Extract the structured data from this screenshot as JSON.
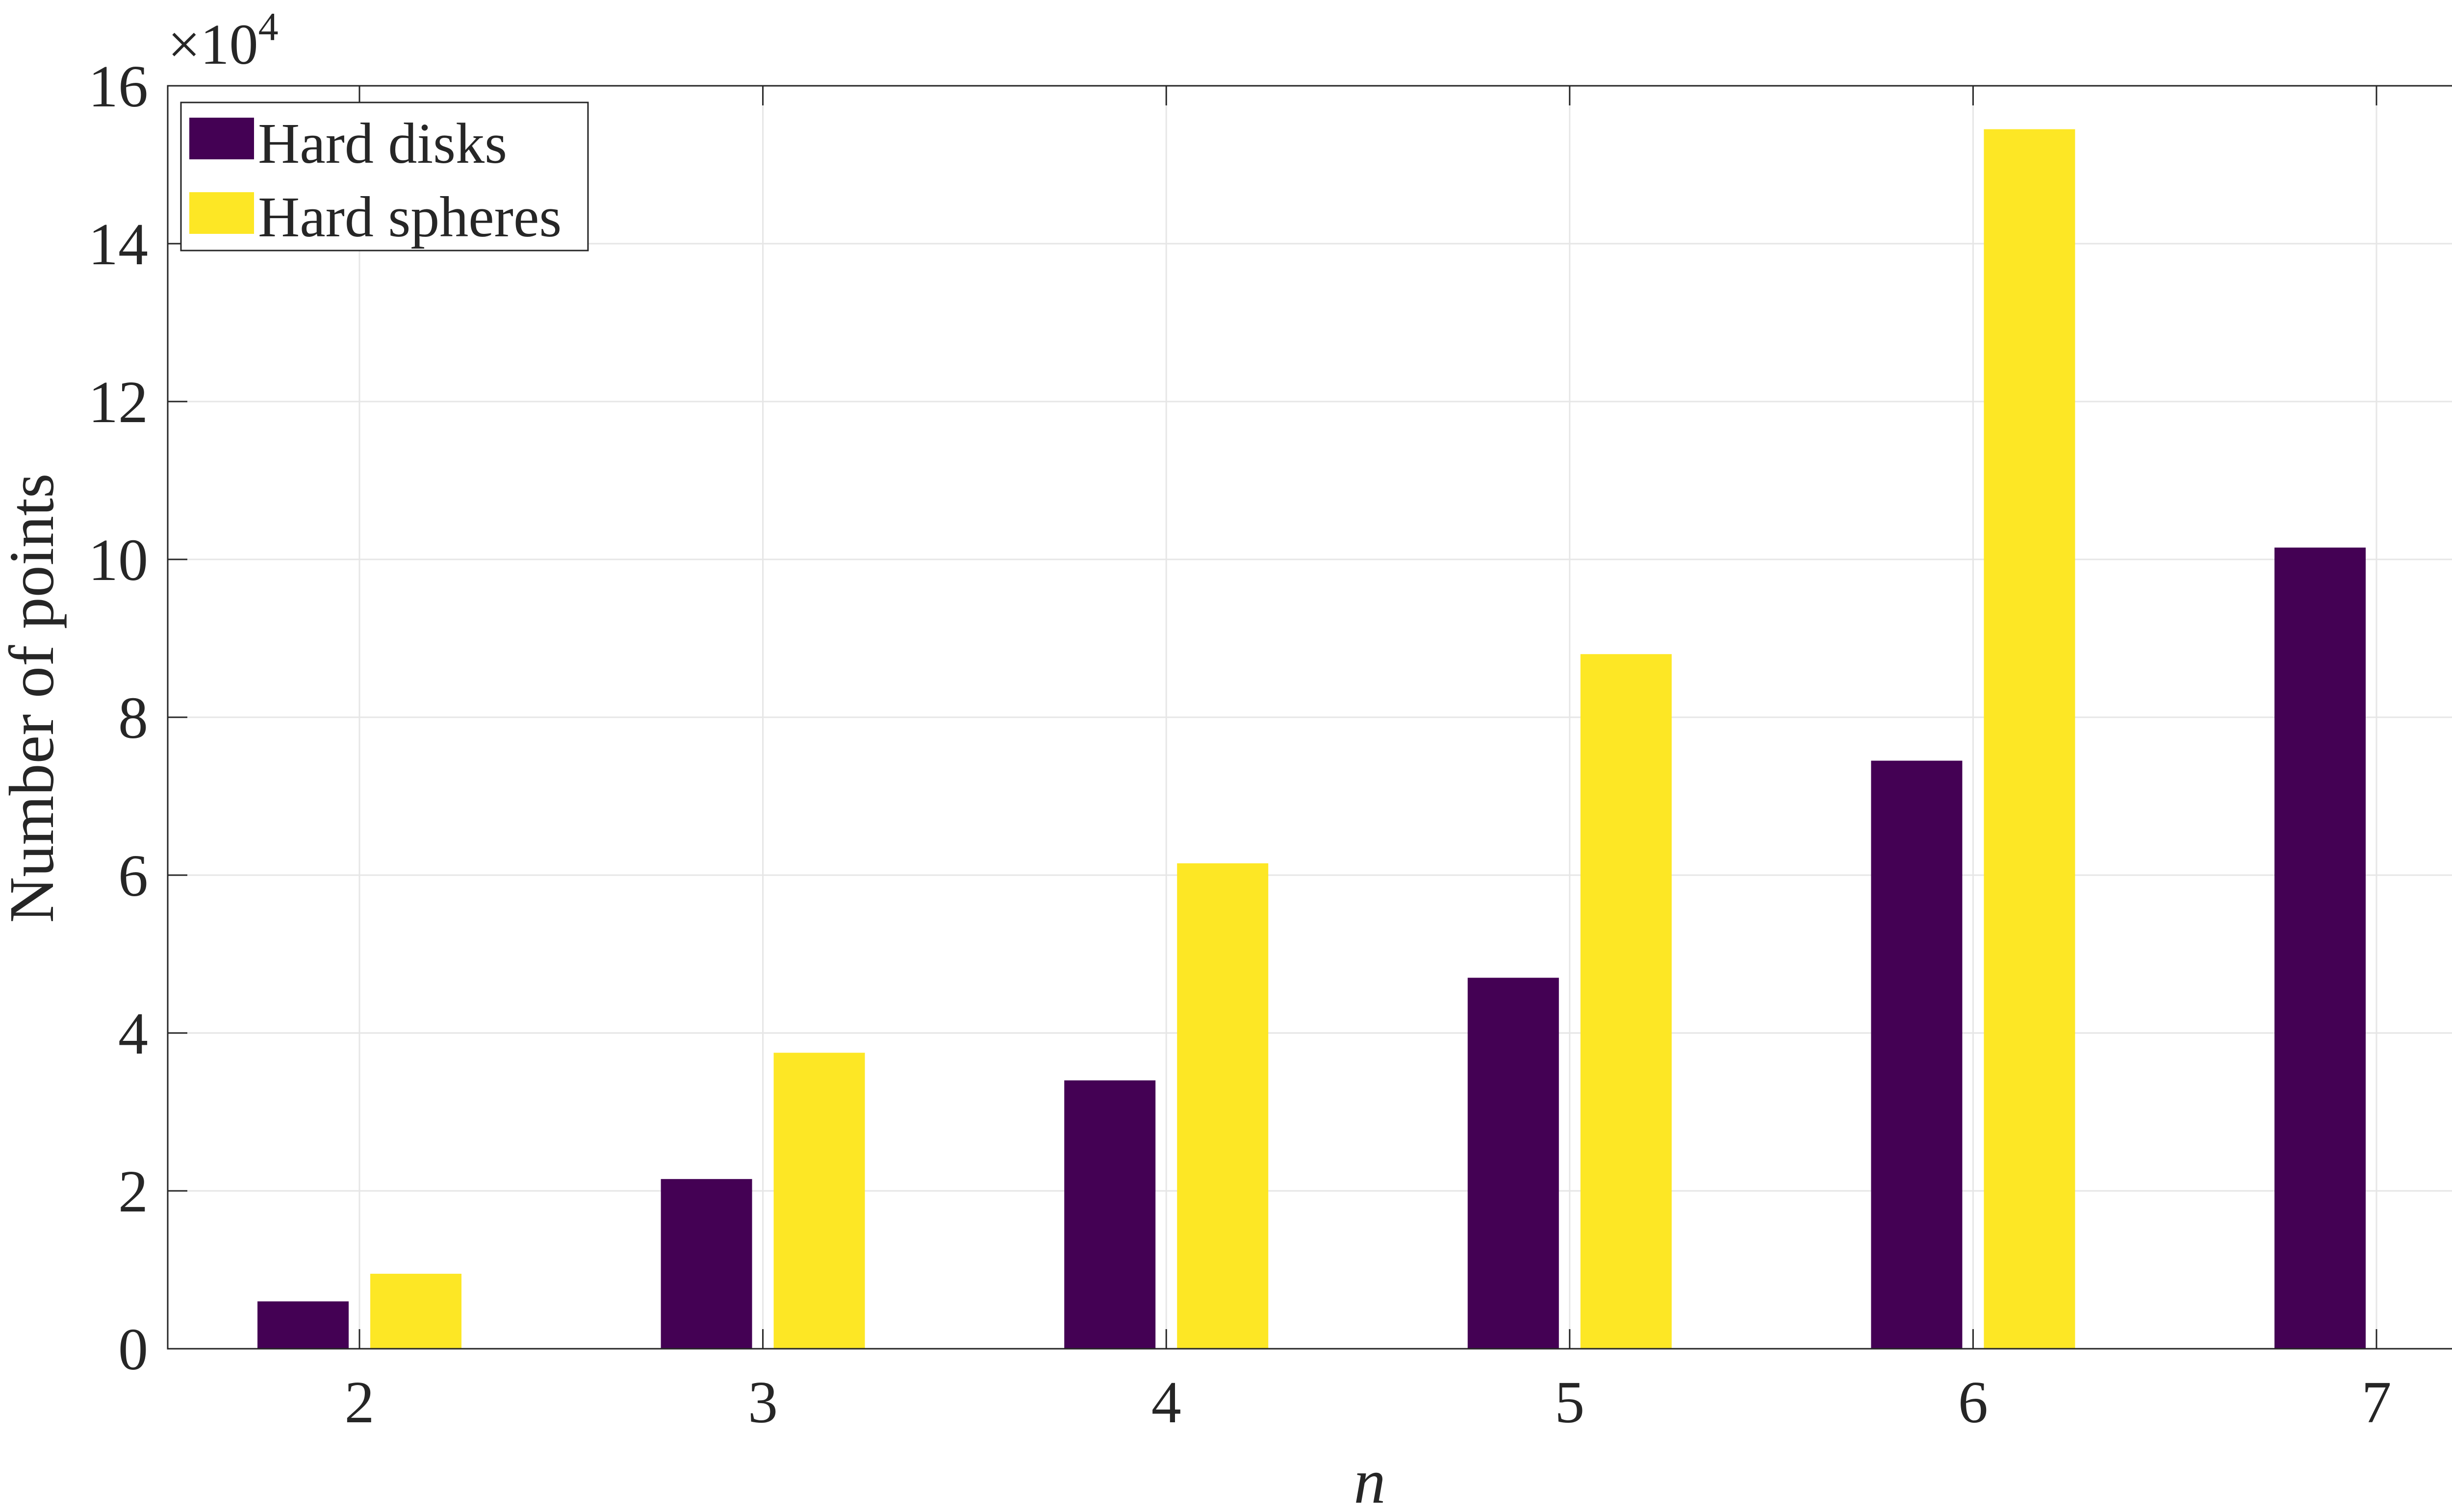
{
  "chart_data": {
    "type": "bar",
    "categories": [
      "2",
      "3",
      "4",
      "5",
      "6",
      "7"
    ],
    "series": [
      {
        "name": "Hard disks",
        "color": "#440154",
        "values": [
          6000,
          21500,
          34000,
          47000,
          74500,
          101500
        ]
      },
      {
        "name": "Hard spheres",
        "color": "#FDE725",
        "values": [
          9500,
          37500,
          61500,
          88000,
          154500,
          0
        ]
      }
    ],
    "title": "",
    "xlabel": "n",
    "ylabel": "Number of points",
    "ylim": [
      0,
      160000
    ],
    "y_ticks": [
      0,
      2,
      4,
      6,
      8,
      10,
      12,
      14,
      16
    ],
    "y_tick_labels": [
      "0",
      "2",
      "4",
      "6",
      "8",
      "10",
      "12",
      "14",
      "16"
    ],
    "y_exponent_label": {
      "prefix": "×10",
      "power": "4"
    },
    "grid": true,
    "legend_position": "top-left",
    "legend": [
      "Hard disks",
      "Hard spheres"
    ]
  }
}
